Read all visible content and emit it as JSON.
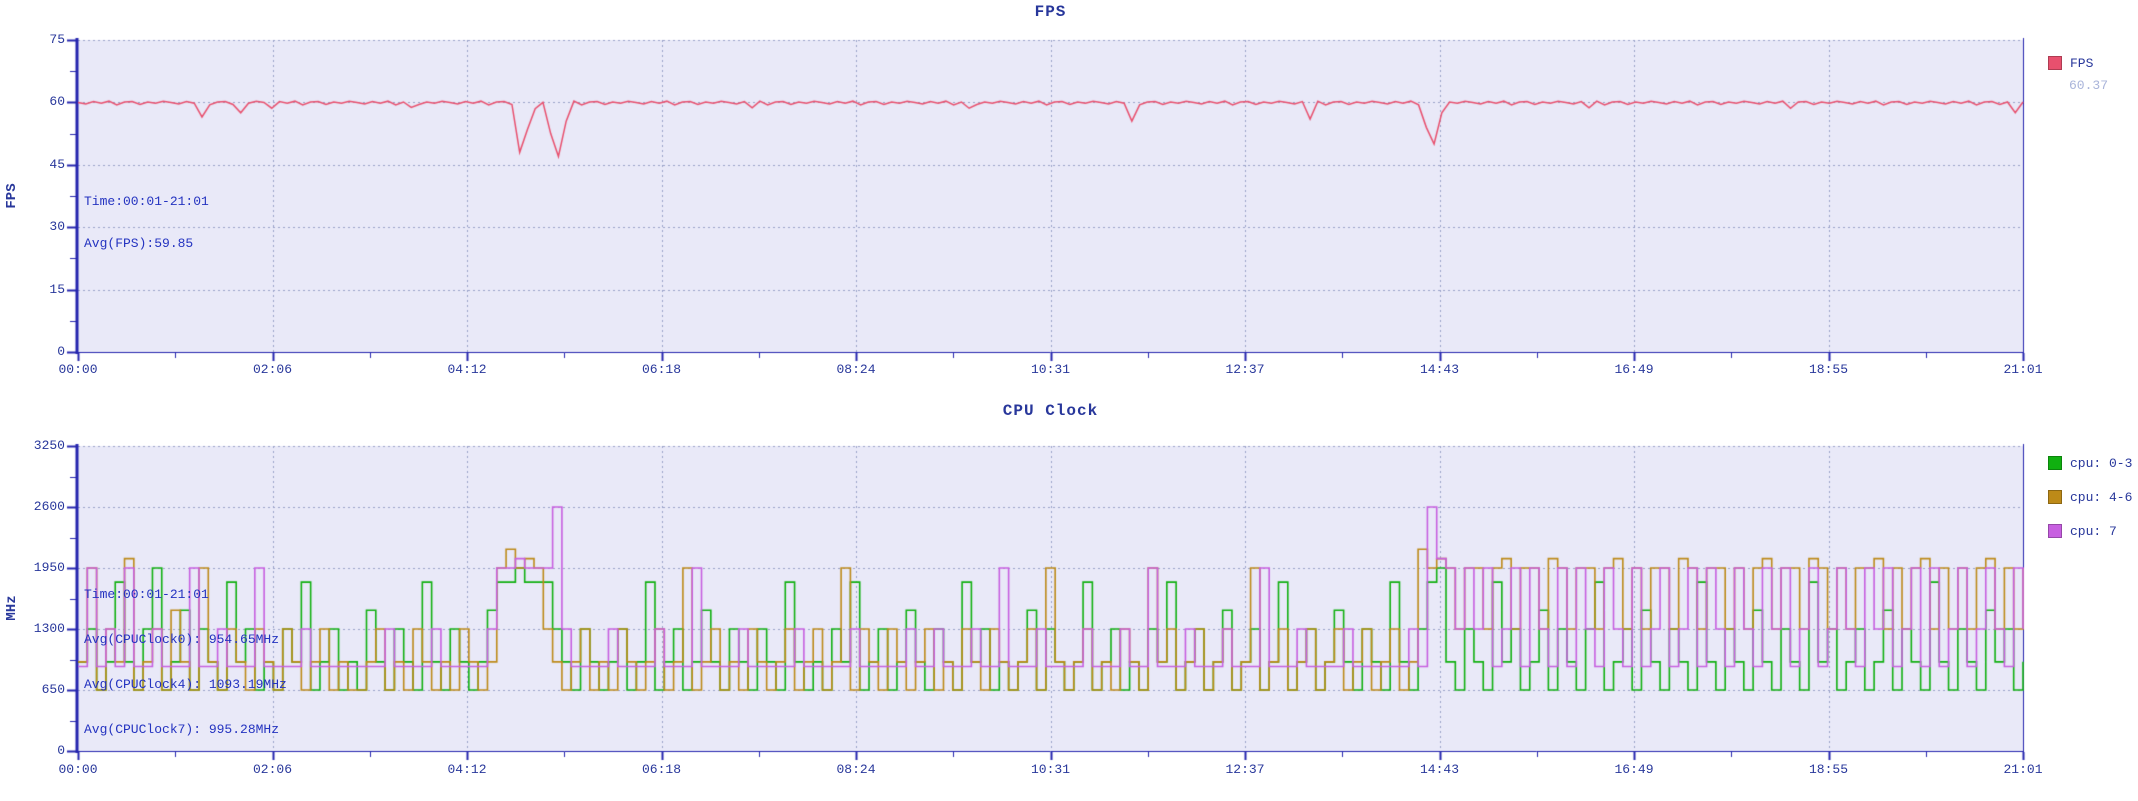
{
  "palette": {
    "text_navy": "#28379b",
    "annotation_blue": "#2433c0",
    "legend_value_gray": "#a9b4da",
    "plot_bg": "#e9e9f8",
    "grid": "#9aa2c8",
    "axis": "#2424ae",
    "fps_red": "#e8506e",
    "cpu03_green": "#10b010",
    "cpu46_gold": "#bd8a18",
    "cpu7_magenta": "#c75fe0"
  },
  "chart_data": [
    {
      "type": "line",
      "title": "FPS",
      "xlabel": "",
      "ylabel": "FPS",
      "ylim": [
        0,
        75
      ],
      "grid": true,
      "legend_position": "right",
      "x_tick_labels": [
        "00:00",
        "02:06",
        "04:12",
        "06:18",
        "08:24",
        "10:31",
        "12:37",
        "14:43",
        "16:49",
        "18:55",
        "21:01"
      ],
      "y_tick_labels": [
        "75",
        "60",
        "45",
        "30",
        "15",
        "0"
      ],
      "annotation": [
        "Time:00:01-21:01",
        "Avg(FPS):59.85"
      ],
      "series": [
        {
          "name": "FPS",
          "current_value": "60.37",
          "color": "#e8506e",
          "style": "line",
          "values": [
            60,
            59.6,
            60.2,
            59.8,
            60.3,
            59.4,
            60.1,
            60.2,
            59.5,
            60.1,
            59.8,
            60.3,
            60,
            59.6,
            60.2,
            59.8,
            56.5,
            59.4,
            60.1,
            60.2,
            59.5,
            57.5,
            59.8,
            60.3,
            60,
            58.6,
            60.2,
            59.8,
            60.3,
            59.4,
            60.1,
            60.2,
            59.5,
            60.1,
            59.8,
            60.3,
            60,
            59.6,
            60.2,
            59.8,
            60.3,
            59.4,
            60.1,
            58.8,
            59.5,
            60.1,
            59.8,
            60.3,
            60,
            59.6,
            60.2,
            59.8,
            60.3,
            59.4,
            60.1,
            60.2,
            59.5,
            48,
            53.5,
            58.5,
            60,
            52.5,
            47,
            55.5,
            60.3,
            59.4,
            60.1,
            60.2,
            59.5,
            60.1,
            59.8,
            60.3,
            60,
            59.6,
            60.2,
            59.8,
            60.3,
            59.4,
            60.1,
            60.2,
            59.5,
            60.1,
            59.8,
            60.3,
            60,
            59.6,
            60.2,
            58.7,
            60.3,
            59.4,
            60.1,
            60.2,
            59.5,
            60.1,
            59.8,
            60.3,
            60,
            59.6,
            60.2,
            59.8,
            60.3,
            59.4,
            60.1,
            60.2,
            59.5,
            60.1,
            59.8,
            60.3,
            60,
            59.6,
            60.2,
            59.8,
            60.3,
            59.4,
            60.1,
            58.6,
            59.5,
            60.1,
            59.8,
            60.3,
            60,
            59.6,
            60.2,
            59.8,
            60.3,
            59.4,
            60.1,
            60.2,
            59.5,
            60.1,
            59.8,
            60.3,
            60,
            59.6,
            60.2,
            59.8,
            55.5,
            59.4,
            60.1,
            60.2,
            59.5,
            60.1,
            59.8,
            60.3,
            60,
            59.6,
            60.2,
            59.8,
            60.3,
            59.4,
            60.1,
            60.2,
            59.5,
            60.1,
            59.8,
            60.3,
            60,
            59.6,
            60.2,
            56,
            60.3,
            59.4,
            60.1,
            60.2,
            59.5,
            60.1,
            59.8,
            60.3,
            60,
            59.6,
            60.2,
            59.8,
            60.3,
            59.4,
            54,
            50,
            57.5,
            60.1,
            59.8,
            60.3,
            60,
            59.6,
            60.2,
            59.8,
            60.3,
            59.4,
            60.1,
            60.2,
            59.5,
            60.1,
            59.8,
            60.3,
            60,
            59.6,
            60.2,
            58.7,
            60.3,
            59.4,
            60.1,
            60.2,
            59.5,
            60.1,
            59.8,
            60.3,
            60,
            59.6,
            60.2,
            59.8,
            60.3,
            59.4,
            60.1,
            60.2,
            59.5,
            60.1,
            59.8,
            60.3,
            60,
            59.6,
            60.2,
            59.8,
            60.3,
            58.6,
            60.1,
            60.2,
            59.5,
            60.1,
            59.8,
            60.3,
            60,
            59.6,
            60.2,
            59.8,
            60.3,
            59.4,
            60.1,
            60.2,
            59.5,
            60.1,
            59.8,
            60.3,
            60,
            59.6,
            60.2,
            59.8,
            60.3,
            59.4,
            60.1,
            60.2,
            59.5,
            60.1,
            57.5,
            60.1
          ]
        }
      ]
    },
    {
      "type": "line",
      "title": "CPU Clock",
      "xlabel": "",
      "ylabel": "MHz",
      "ylim": [
        0,
        3250
      ],
      "grid": true,
      "legend_position": "right",
      "x_tick_labels": [
        "00:00",
        "02:06",
        "04:12",
        "06:18",
        "08:24",
        "10:31",
        "12:37",
        "14:43",
        "16:49",
        "18:55",
        "21:01"
      ],
      "y_tick_labels": [
        "3250",
        "2600",
        "1950",
        "1300",
        "650",
        "0"
      ],
      "annotation": [
        "Time:00:01-21:01",
        "Avg(CPUClock0): 954.65MHz",
        "Avg(CPUClock4): 1093.19MHz",
        "Avg(CPUClock7): 995.28MHz"
      ],
      "series": [
        {
          "name": "cpu: 0-3",
          "color": "#10b010",
          "style": "step",
          "values": [
            950,
            1300,
            650,
            950,
            1800,
            950,
            650,
            1300,
            1950,
            650,
            950,
            1500,
            650,
            1300,
            950,
            650,
            1800,
            950,
            1300,
            650,
            950,
            650,
            1300,
            950,
            1800,
            650,
            950,
            1300,
            650,
            950,
            650,
            1500,
            950,
            650,
            1300,
            950,
            650,
            1800,
            950,
            650,
            1300,
            950,
            650,
            950,
            1500,
            1800,
            1800,
            1950,
            1800,
            1800,
            1800,
            1300,
            950,
            650,
            1300,
            950,
            650,
            950,
            1300,
            650,
            950,
            1800,
            650,
            950,
            1300,
            650,
            950,
            1500,
            950,
            650,
            1300,
            950,
            650,
            1300,
            950,
            650,
            1800,
            950,
            650,
            950,
            650,
            1300,
            950,
            1800,
            650,
            950,
            1300,
            650,
            950,
            1500,
            950,
            650,
            1300,
            950,
            650,
            1800,
            950,
            1300,
            650,
            950,
            650,
            950,
            1500,
            650,
            1300,
            950,
            650,
            950,
            1800,
            650,
            950,
            1300,
            650,
            950,
            650,
            1300,
            950,
            1800,
            650,
            950,
            1300,
            650,
            950,
            1500,
            650,
            950,
            1300,
            650,
            950,
            1800,
            650,
            950,
            1300,
            650,
            950,
            1500,
            950,
            650,
            1300,
            950,
            650,
            1800,
            950,
            650,
            1300,
            1800,
            1950,
            950,
            650,
            1300,
            950,
            650,
            1800,
            950,
            1300,
            650,
            950,
            1500,
            650,
            1300,
            950,
            650,
            1300,
            1800,
            650,
            950,
            1300,
            650,
            1500,
            950,
            650,
            1300,
            950,
            650,
            1800,
            950,
            650,
            1300,
            950,
            650,
            1500,
            950,
            650,
            1300,
            950,
            650,
            1800,
            950,
            1300,
            650,
            950,
            1300,
            650,
            950,
            1500,
            650,
            1300,
            950,
            650,
            1800,
            950,
            650,
            1300,
            950,
            650,
            1500,
            950,
            1300,
            650,
            950
          ]
        },
        {
          "name": "cpu: 4-6",
          "color": "#bd8a18",
          "style": "step",
          "values": [
            950,
            1950,
            650,
            1300,
            950,
            2050,
            650,
            950,
            1300,
            650,
            1500,
            950,
            650,
            1950,
            950,
            650,
            1300,
            950,
            650,
            1300,
            950,
            650,
            1300,
            950,
            650,
            950,
            1300,
            650,
            950,
            650,
            650,
            950,
            1300,
            650,
            950,
            650,
            1300,
            950,
            650,
            950,
            650,
            1300,
            950,
            650,
            950,
            1950,
            2150,
            1950,
            2050,
            1950,
            1300,
            950,
            650,
            950,
            1300,
            650,
            950,
            650,
            1300,
            950,
            650,
            950,
            1300,
            650,
            950,
            1950,
            650,
            950,
            1300,
            650,
            950,
            650,
            1300,
            950,
            650,
            950,
            1300,
            650,
            950,
            1300,
            650,
            950,
            1950,
            650,
            1300,
            950,
            650,
            1300,
            950,
            650,
            950,
            1300,
            650,
            950,
            650,
            1300,
            950,
            650,
            1300,
            950,
            650,
            950,
            1300,
            650,
            1950,
            950,
            650,
            950,
            1300,
            650,
            950,
            650,
            1300,
            950,
            650,
            1950,
            950,
            1300,
            650,
            950,
            1300,
            650,
            950,
            1300,
            650,
            950,
            1950,
            650,
            950,
            1300,
            650,
            950,
            1300,
            650,
            950,
            1300,
            650,
            950,
            1300,
            650,
            950,
            1300,
            650,
            950,
            2150,
            1950,
            2050,
            1950,
            1300,
            1950,
            1950,
            1300,
            1950,
            2050,
            1300,
            1950,
            1950,
            1300,
            2050,
            1950,
            1300,
            1950,
            1950,
            1300,
            1950,
            2050,
            1300,
            1950,
            1300,
            1950,
            1950,
            1300,
            2050,
            1950,
            1300,
            1950,
            1950,
            1300,
            1950,
            1300,
            1950,
            2050,
            1300,
            1950,
            1950,
            1300,
            2050,
            1950,
            1300,
            1950,
            1300,
            1950,
            1950,
            2050,
            1300,
            1950,
            1300,
            1950,
            2050,
            1300,
            1950,
            1300,
            1950,
            1300,
            1950,
            2050,
            1300,
            1950,
            1300,
            1950
          ]
        },
        {
          "name": "cpu: 7",
          "color": "#c75fe0",
          "style": "step",
          "values": [
            900,
            1950,
            900,
            1300,
            900,
            1950,
            900,
            900,
            1300,
            900,
            900,
            900,
            1950,
            900,
            900,
            1300,
            900,
            900,
            900,
            1950,
            900,
            900,
            900,
            900,
            1300,
            900,
            900,
            900,
            900,
            900,
            900,
            900,
            900,
            1300,
            900,
            900,
            900,
            900,
            1300,
            900,
            900,
            900,
            900,
            900,
            1300,
            1950,
            1950,
            2050,
            1950,
            1950,
            1950,
            2600,
            1300,
            900,
            900,
            900,
            900,
            1300,
            900,
            900,
            900,
            900,
            1300,
            900,
            900,
            900,
            1950,
            900,
            900,
            900,
            900,
            1300,
            900,
            900,
            900,
            900,
            900,
            1300,
            900,
            900,
            900,
            900,
            900,
            1300,
            900,
            900,
            900,
            900,
            900,
            1300,
            900,
            900,
            1300,
            900,
            900,
            900,
            1300,
            900,
            900,
            1950,
            900,
            900,
            900,
            1300,
            900,
            900,
            900,
            900,
            1300,
            900,
            900,
            900,
            1300,
            900,
            900,
            1950,
            900,
            900,
            900,
            1300,
            900,
            900,
            900,
            1300,
            900,
            900,
            900,
            1950,
            900,
            900,
            900,
            1300,
            900,
            900,
            900,
            900,
            1300,
            900,
            900,
            900,
            900,
            900,
            900,
            1300,
            900,
            2600,
            2050,
            1950,
            1300,
            1950,
            1300,
            1950,
            900,
            1300,
            1950,
            900,
            1950,
            1300,
            900,
            1950,
            900,
            1950,
            1300,
            900,
            1950,
            1300,
            900,
            1950,
            900,
            1300,
            1950,
            900,
            1300,
            1950,
            900,
            1950,
            1300,
            900,
            1950,
            1300,
            900,
            1950,
            1300,
            1950,
            900,
            1300,
            1950,
            900,
            1300,
            1950,
            1300,
            900,
            1950,
            1300,
            1950,
            900,
            1300,
            1950,
            900,
            1950,
            900,
            1300,
            1950,
            900,
            1300,
            1950,
            1300,
            900,
            1950,
            1300
          ]
        }
      ]
    }
  ]
}
